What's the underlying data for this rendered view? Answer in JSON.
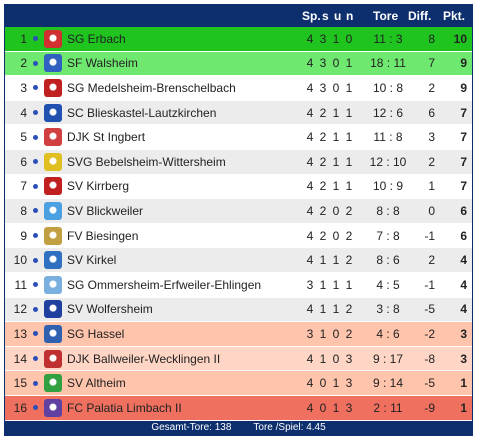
{
  "header": {
    "sp": "Sp.",
    "s": "s",
    "u": "u",
    "n": "n",
    "tore": "Tore",
    "diff": "Diff.",
    "pkt": "Pkt."
  },
  "rows": [
    {
      "rank": "1",
      "team": "SG Erbach",
      "sp": "4",
      "s": "3",
      "u": "1",
      "n": "0",
      "tore": "11 : 3",
      "diff": "8",
      "pkt": "10",
      "bg": "#1fc41f",
      "logo": "#d03030"
    },
    {
      "rank": "2",
      "team": "SF Walsheim",
      "sp": "4",
      "s": "3",
      "u": "0",
      "n": "1",
      "tore": "18 : 11",
      "diff": "7",
      "pkt": "9",
      "bg": "#6fe86f",
      "logo": "#3060c0"
    },
    {
      "rank": "3",
      "team": "SG Medelsheim-Brenschelbach",
      "sp": "4",
      "s": "3",
      "u": "0",
      "n": "1",
      "tore": "10 : 8",
      "diff": "2",
      "pkt": "9",
      "bg": "#ffffff",
      "logo": "#c02020"
    },
    {
      "rank": "4",
      "team": "SC Blieskastel-Lautzkirchen",
      "sp": "4",
      "s": "2",
      "u": "1",
      "n": "1",
      "tore": "12 : 6",
      "diff": "6",
      "pkt": "7",
      "bg": "#ececec",
      "logo": "#2050b0"
    },
    {
      "rank": "5",
      "team": "DJK St Ingbert",
      "sp": "4",
      "s": "2",
      "u": "1",
      "n": "1",
      "tore": "11 : 8",
      "diff": "3",
      "pkt": "7",
      "bg": "#ffffff",
      "logo": "#d04040"
    },
    {
      "rank": "6",
      "team": "SVG Bebelsheim-Wittersheim",
      "sp": "4",
      "s": "2",
      "u": "1",
      "n": "1",
      "tore": "12 : 10",
      "diff": "2",
      "pkt": "7",
      "bg": "#ececec",
      "logo": "#e0c020"
    },
    {
      "rank": "7",
      "team": "SV Kirrberg",
      "sp": "4",
      "s": "2",
      "u": "1",
      "n": "1",
      "tore": "10 : 9",
      "diff": "1",
      "pkt": "7",
      "bg": "#ffffff",
      "logo": "#c02020"
    },
    {
      "rank": "8",
      "team": "SV Blickweiler",
      "sp": "4",
      "s": "2",
      "u": "0",
      "n": "2",
      "tore": "8 : 8",
      "diff": "0",
      "pkt": "6",
      "bg": "#ececec",
      "logo": "#4aa0e0"
    },
    {
      "rank": "9",
      "team": "FV Biesingen",
      "sp": "4",
      "s": "2",
      "u": "0",
      "n": "2",
      "tore": "7 : 8",
      "diff": "-1",
      "pkt": "6",
      "bg": "#ffffff",
      "logo": "#c0a040"
    },
    {
      "rank": "10",
      "team": "SV Kirkel",
      "sp": "4",
      "s": "1",
      "u": "1",
      "n": "2",
      "tore": "8 : 6",
      "diff": "2",
      "pkt": "4",
      "bg": "#ececec",
      "logo": "#3070c0"
    },
    {
      "rank": "11",
      "team": "SG Ommersheim-Erfweiler-Ehlingen",
      "sp": "3",
      "s": "1",
      "u": "1",
      "n": "1",
      "tore": "4 : 5",
      "diff": "-1",
      "pkt": "4",
      "bg": "#ffffff",
      "logo": "#7ab0e0"
    },
    {
      "rank": "12",
      "team": "SV Wolfersheim",
      "sp": "4",
      "s": "1",
      "u": "1",
      "n": "2",
      "tore": "3 : 8",
      "diff": "-5",
      "pkt": "4",
      "bg": "#ececec",
      "logo": "#2040a0"
    },
    {
      "rank": "13",
      "team": "SG Hassel",
      "sp": "3",
      "s": "1",
      "u": "0",
      "n": "2",
      "tore": "4 : 6",
      "diff": "-2",
      "pkt": "3",
      "bg": "#ffc4ac",
      "logo": "#3060b0"
    },
    {
      "rank": "14",
      "team": "DJK Ballweiler-Wecklingen II",
      "sp": "4",
      "s": "1",
      "u": "0",
      "n": "3",
      "tore": "9 : 17",
      "diff": "-8",
      "pkt": "3",
      "bg": "#ffd6c6",
      "logo": "#c03030"
    },
    {
      "rank": "15",
      "team": "SV Altheim",
      "sp": "4",
      "s": "0",
      "u": "1",
      "n": "3",
      "tore": "9 : 14",
      "diff": "-5",
      "pkt": "1",
      "bg": "#ffc4ac",
      "logo": "#30a040"
    },
    {
      "rank": "16",
      "team": "FC Palatia Limbach II",
      "sp": "4",
      "s": "0",
      "u": "1",
      "n": "3",
      "tore": "2 : 11",
      "diff": "-9",
      "pkt": "1",
      "bg": "#f07060",
      "logo": "#6040a0"
    }
  ],
  "footer": {
    "total": "Gesamt-Tore: 138",
    "avg": "Tore /Spiel: 4.45"
  }
}
